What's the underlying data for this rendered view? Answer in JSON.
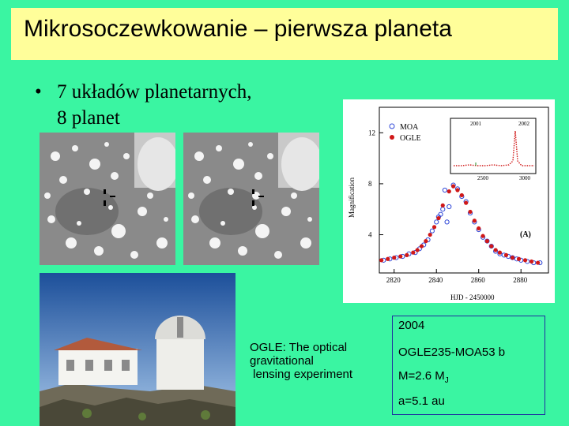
{
  "slide": {
    "title": "Mikrosoczewkowanie – pierwsza planeta",
    "bullet": {
      "symbol": "•",
      "line1": "7 układów planetarnych,",
      "line2": "8 planet"
    },
    "ogle_caption": "OGLE: The optical\ngravitational\n lensing experiment",
    "info": {
      "year": "2004",
      "name": "OGLE235-MOA53 b",
      "mass_prefix": "M=2.6 M",
      "mass_sub": "J",
      "distance": "a=5.1 au"
    },
    "colors": {
      "background": "#3af5a2",
      "title_bg": "#fffe9a",
      "info_border": "#2030a0"
    }
  },
  "chart_data": {
    "type": "scatter",
    "xlabel": "HJD - 2450000",
    "ylabel": "Magnification",
    "annotation": "(A)",
    "xticks": [
      "2820",
      "2840",
      "2860",
      "2880"
    ],
    "yticks": [
      "4",
      "8",
      "12"
    ],
    "xlim": [
      2813,
      2893
    ],
    "ylim": [
      1,
      14
    ],
    "series": [
      {
        "name": "MOA",
        "marker": "open-circle",
        "color": "#3048d8",
        "x": [
          2815,
          2818,
          2821,
          2824,
          2827,
          2830,
          2832,
          2834,
          2836,
          2838,
          2840,
          2841,
          2842,
          2843,
          2844,
          2845,
          2846,
          2848,
          2850,
          2852,
          2854,
          2856,
          2858,
          2860,
          2862,
          2864,
          2866,
          2868,
          2870,
          2872,
          2874,
          2876,
          2878,
          2880,
          2883,
          2886,
          2889
        ],
        "y": [
          2.0,
          2.1,
          2.2,
          2.3,
          2.5,
          2.6,
          2.9,
          3.2,
          3.6,
          4.3,
          5.0,
          5.4,
          5.6,
          6.0,
          7.5,
          5.0,
          6.2,
          7.9,
          7.6,
          7.0,
          6.6,
          5.7,
          5.0,
          4.4,
          3.8,
          3.5,
          3.1,
          2.7,
          2.5,
          2.4,
          2.3,
          2.2,
          2.1,
          2.0,
          1.9,
          1.8,
          1.8
        ]
      },
      {
        "name": "OGLE",
        "marker": "filled-circle",
        "color": "#d01818",
        "x": [
          2814,
          2817,
          2820,
          2823,
          2826,
          2829,
          2831,
          2833,
          2835,
          2837,
          2839,
          2841,
          2843,
          2846,
          2848,
          2850,
          2852,
          2854,
          2856,
          2858,
          2860,
          2862,
          2864,
          2866,
          2868,
          2870,
          2873,
          2876,
          2879,
          2882,
          2885,
          2888
        ],
        "y": [
          2.0,
          2.1,
          2.2,
          2.3,
          2.4,
          2.6,
          2.8,
          3.1,
          3.5,
          4.0,
          4.6,
          5.3,
          6.3,
          7.4,
          7.8,
          7.5,
          7.1,
          6.5,
          5.8,
          5.1,
          4.5,
          3.9,
          3.5,
          3.1,
          2.8,
          2.6,
          2.4,
          2.2,
          2.1,
          2.0,
          1.9,
          1.8
        ]
      }
    ],
    "inset": {
      "xticks": [
        "2001",
        "2002"
      ],
      "xticks_bottom": [
        "2500",
        "3000"
      ]
    }
  }
}
